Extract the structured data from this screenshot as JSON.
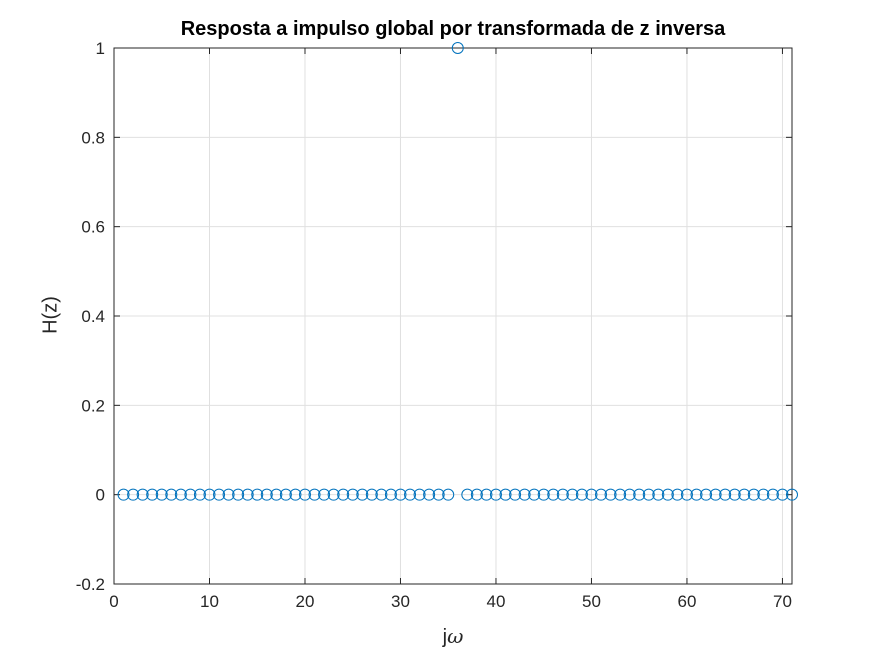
{
  "chart_data": {
    "type": "scatter",
    "title": "Resposta a impulso global por transformada de z inversa",
    "xlabel_text": "j",
    "xlabel_symbol": "ω",
    "ylabel": "H(z)",
    "xlim": [
      0,
      71
    ],
    "ylim": [
      -0.2,
      1
    ],
    "xticks": [
      0,
      10,
      20,
      30,
      40,
      50,
      60,
      70
    ],
    "xtick_labels": [
      "0",
      "10",
      "20",
      "30",
      "40",
      "50",
      "60",
      "70"
    ],
    "yticks": [
      -0.2,
      0,
      0.2,
      0.4,
      0.6,
      0.8,
      1
    ],
    "ytick_labels": [
      "-0.2",
      "0",
      "0.2",
      "0.4",
      "0.6",
      "0.8",
      "1"
    ],
    "grid": true,
    "marker": "circle-open",
    "marker_color": "#0072BD",
    "x": [
      1,
      2,
      3,
      4,
      5,
      6,
      7,
      8,
      9,
      10,
      11,
      12,
      13,
      14,
      15,
      16,
      17,
      18,
      19,
      20,
      21,
      22,
      23,
      24,
      25,
      26,
      27,
      28,
      29,
      30,
      31,
      32,
      33,
      34,
      35,
      36,
      37,
      38,
      39,
      40,
      41,
      42,
      43,
      44,
      45,
      46,
      47,
      48,
      49,
      50,
      51,
      52,
      53,
      54,
      55,
      56,
      57,
      58,
      59,
      60,
      61,
      62,
      63,
      64,
      65,
      66,
      67,
      68,
      69,
      70,
      71
    ],
    "y": [
      0,
      0,
      0,
      0,
      0,
      0,
      0,
      0,
      0,
      0,
      0,
      0,
      0,
      0,
      0,
      0,
      0,
      0,
      0,
      0,
      0,
      0,
      0,
      0,
      0,
      0,
      0,
      0,
      0,
      0,
      0,
      0,
      0,
      0,
      0,
      1,
      0,
      0,
      0,
      0,
      0,
      0,
      0,
      0,
      0,
      0,
      0,
      0,
      0,
      0,
      0,
      0,
      0,
      0,
      0,
      0,
      0,
      0,
      0,
      0,
      0,
      0,
      0,
      0,
      0,
      0,
      0,
      0,
      0,
      0,
      0
    ]
  }
}
